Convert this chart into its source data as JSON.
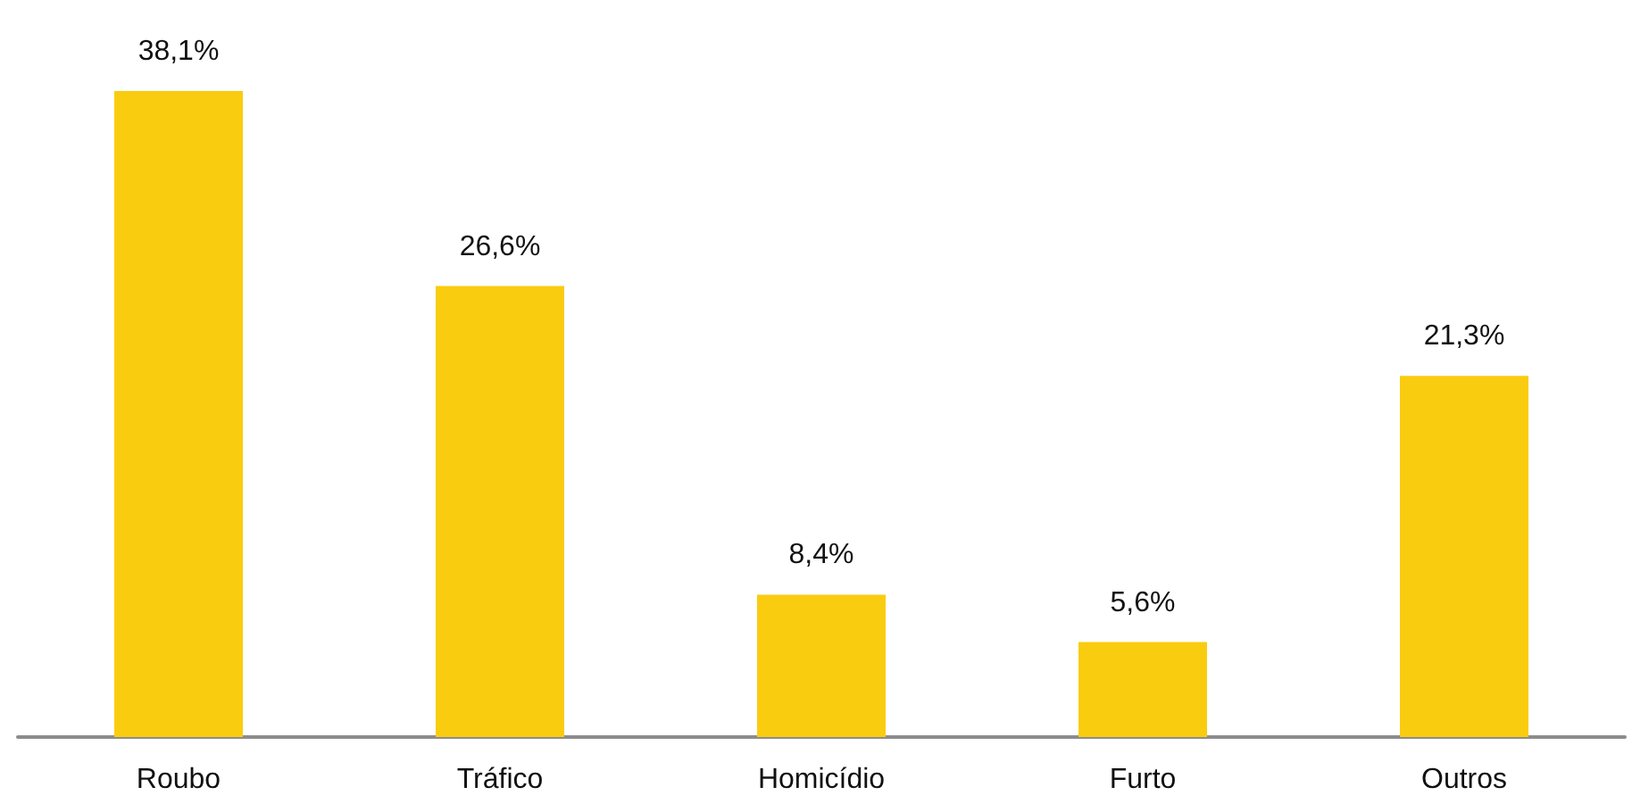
{
  "chart_data": {
    "type": "bar",
    "categories": [
      "Roubo",
      "Tráfico",
      "Homicídio",
      "Furto",
      "Outros"
    ],
    "values": [
      38.1,
      26.6,
      8.4,
      5.6,
      21.3
    ],
    "value_labels": [
      "38,1%",
      "26,6%",
      "8,4%",
      "5,6%",
      "21,3%"
    ],
    "color": "#facc0f"
  }
}
